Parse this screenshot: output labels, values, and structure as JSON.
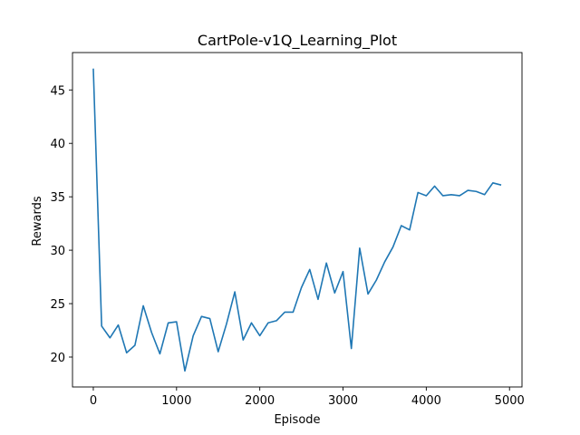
{
  "chart_data": {
    "type": "line",
    "title": "CartPole-v1Q_Learning_Plot",
    "xlabel": "Episode",
    "ylabel": "Rewards",
    "xlim": [
      -250,
      5150
    ],
    "ylim": [
      17.2,
      48.5
    ],
    "xticks": [
      0,
      1000,
      2000,
      3000,
      4000,
      5000
    ],
    "yticks": [
      20,
      25,
      30,
      35,
      40,
      45
    ],
    "grid": false,
    "series": [
      {
        "color": "#1f77b4",
        "x": [
          0,
          100,
          200,
          300,
          400,
          500,
          600,
          700,
          800,
          900,
          1000,
          1100,
          1200,
          1300,
          1400,
          1500,
          1600,
          1700,
          1800,
          1900,
          2000,
          2100,
          2200,
          2300,
          2400,
          2500,
          2600,
          2700,
          2800,
          2900,
          3000,
          3100,
          3200,
          3300,
          3400,
          3500,
          3600,
          3700,
          3800,
          3900,
          4000,
          4100,
          4200,
          4300,
          4400,
          4500,
          4600,
          4700,
          4800,
          4900
        ],
        "y": [
          47.0,
          22.9,
          21.8,
          23.0,
          20.4,
          21.1,
          24.8,
          22.3,
          20.3,
          23.2,
          23.3,
          18.7,
          22.0,
          23.8,
          23.6,
          20.5,
          23.1,
          26.1,
          21.6,
          23.2,
          22.0,
          23.2,
          23.4,
          24.2,
          24.2,
          26.5,
          28.2,
          25.4,
          28.8,
          26.0,
          28.0,
          20.8,
          30.2,
          25.9,
          27.2,
          28.9,
          30.3,
          32.3,
          31.9,
          35.4,
          35.1,
          36.0,
          35.1,
          35.2,
          35.1,
          35.6,
          35.5,
          35.2,
          36.3,
          36.1
        ]
      }
    ]
  }
}
